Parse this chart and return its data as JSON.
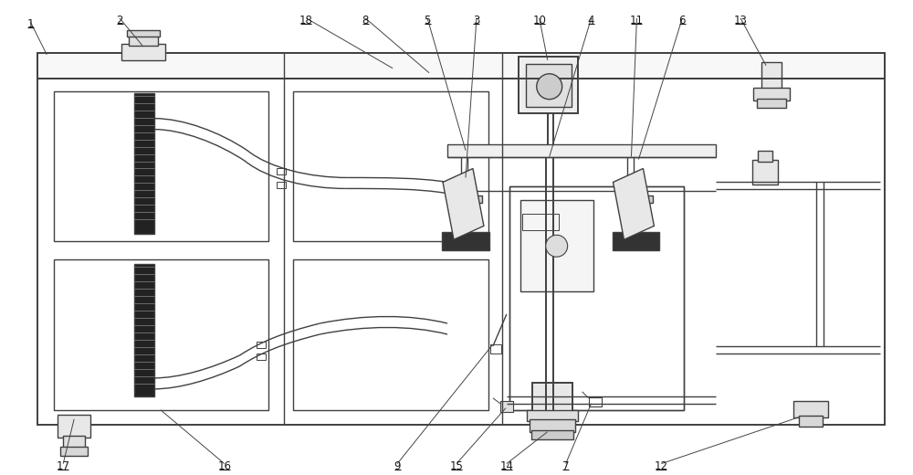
{
  "bg": "#ffffff",
  "lc": "#404040",
  "lc2": "#282828",
  "fig_w": 10.0,
  "fig_h": 5.2,
  "dpi": 100,
  "font_size": 8.5
}
